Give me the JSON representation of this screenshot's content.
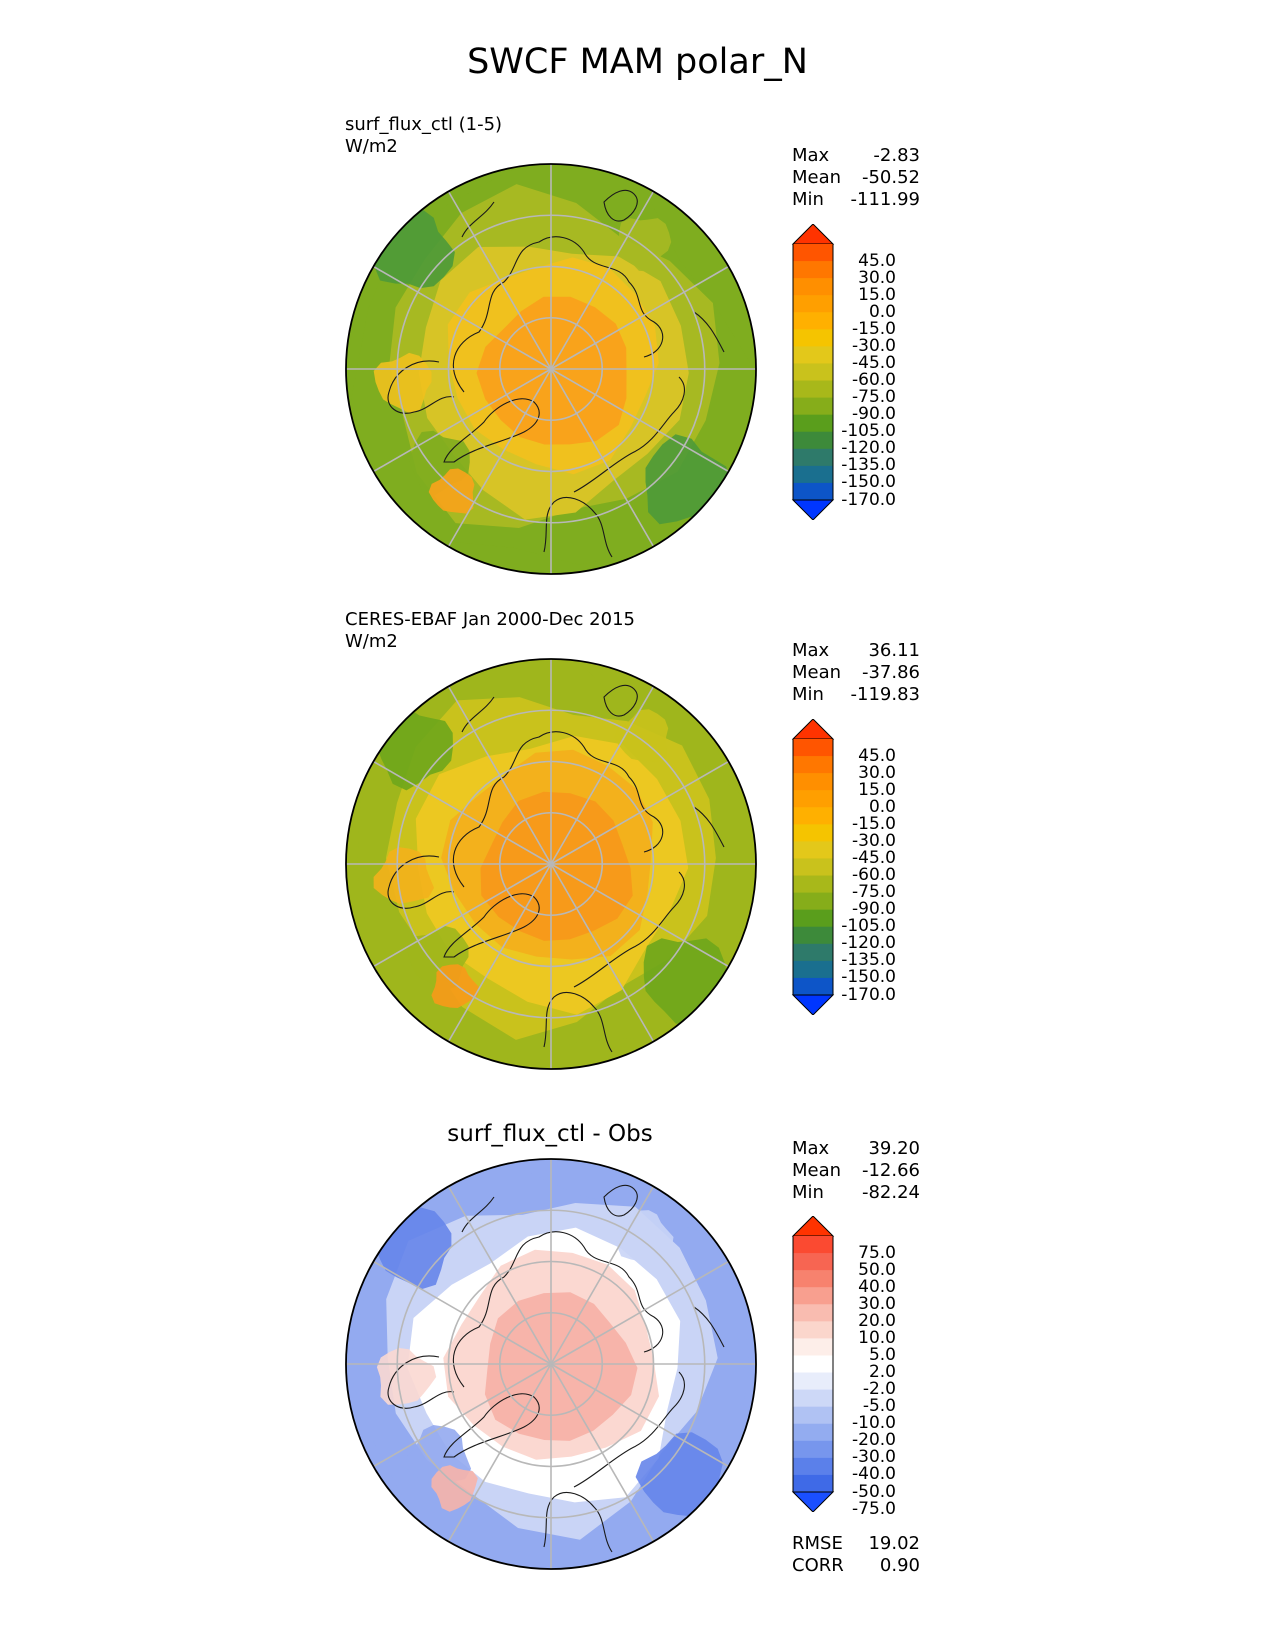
{
  "title": "SWCF MAM polar_N",
  "panels": [
    {
      "title_line1": "surf_flux_ctl (1-5)",
      "title_line2": "W/m2",
      "stats": {
        "max_label": "Max",
        "max": "-2.83",
        "mean_label": "Mean",
        "mean": "-50.52",
        "min_label": "Min",
        "min": "-111.99"
      },
      "colorbar_levels": [
        "45.0",
        "30.0",
        "15.0",
        "0.0",
        "-15.0",
        "-30.0",
        "-45.0",
        "-60.0",
        "-75.0",
        "-90.0",
        "-105.0",
        "-120.0",
        "-135.0",
        "-150.0",
        "-170.0"
      ],
      "colorbar_colors": [
        "#ff3300",
        "#ff5500",
        "#ff7700",
        "#ff8f00",
        "#ff9f00",
        "#ffb000",
        "#f5c400",
        "#e3c81a",
        "#c9c21c",
        "#a8b81a",
        "#86ad1a",
        "#5a9e1c",
        "#3d8a3a",
        "#2e7a6a",
        "#1a6f8f",
        "#0d55c8",
        "#0036ff"
      ],
      "map_palette": [
        "#f9a31b",
        "#f0c11e",
        "#d7c426",
        "#a7b922",
        "#7fad1f",
        "#4e9a38"
      ]
    },
    {
      "title_line1": "CERES-EBAF Jan 2000-Dec 2015",
      "title_line2": "W/m2",
      "stats": {
        "max_label": "Max",
        "max": "36.11",
        "mean_label": "Mean",
        "mean": "-37.86",
        "min_label": "Min",
        "min": "-119.83"
      },
      "colorbar_levels": [
        "45.0",
        "30.0",
        "15.0",
        "0.0",
        "-15.0",
        "-30.0",
        "-45.0",
        "-60.0",
        "-75.0",
        "-90.0",
        "-105.0",
        "-120.0",
        "-135.0",
        "-150.0",
        "-170.0"
      ],
      "colorbar_colors": [
        "#ff3300",
        "#ff5500",
        "#ff7700",
        "#ff8f00",
        "#ff9f00",
        "#ffb000",
        "#f5c400",
        "#e3c81a",
        "#c9c21c",
        "#a8b81a",
        "#86ad1a",
        "#5a9e1c",
        "#3d8a3a",
        "#2e7a6a",
        "#1a6f8f",
        "#0d55c8",
        "#0036ff"
      ],
      "map_palette": [
        "#f79a1a",
        "#f3b11c",
        "#ecc821",
        "#c9c21c",
        "#9fb61c",
        "#6ea61c"
      ]
    },
    {
      "title_line1": "surf_flux_ctl - Obs",
      "stats": {
        "max_label": "Max",
        "max": "39.20",
        "mean_label": "Mean",
        "mean": "-12.66",
        "min_label": "Min",
        "min": "-82.24"
      },
      "colorbar_levels": [
        "75.0",
        "50.0",
        "40.0",
        "30.0",
        "20.0",
        "10.0",
        "5.0",
        "2.0",
        "-2.0",
        "-5.0",
        "-10.0",
        "-20.0",
        "-30.0",
        "-40.0",
        "-50.0",
        "-75.0"
      ],
      "colorbar_colors": [
        "#ff3300",
        "#fb4a31",
        "#f76552",
        "#f7826e",
        "#f89f8f",
        "#f9bcb0",
        "#fbd6cc",
        "#fdeee9",
        "#ffffff",
        "#e8edfb",
        "#cdd8f7",
        "#b0c2f3",
        "#93acf0",
        "#7796ed",
        "#5b80ea",
        "#3f6ae7",
        "#1a4fff"
      ],
      "map_palette": [
        "#f7b4aa",
        "#fbd8d1",
        "#ffffff",
        "#c9d4f6",
        "#93aaf0",
        "#6685ea"
      ],
      "rmse_label": "RMSE",
      "rmse": "19.02",
      "corr_label": "CORR",
      "corr": "0.90"
    }
  ]
}
